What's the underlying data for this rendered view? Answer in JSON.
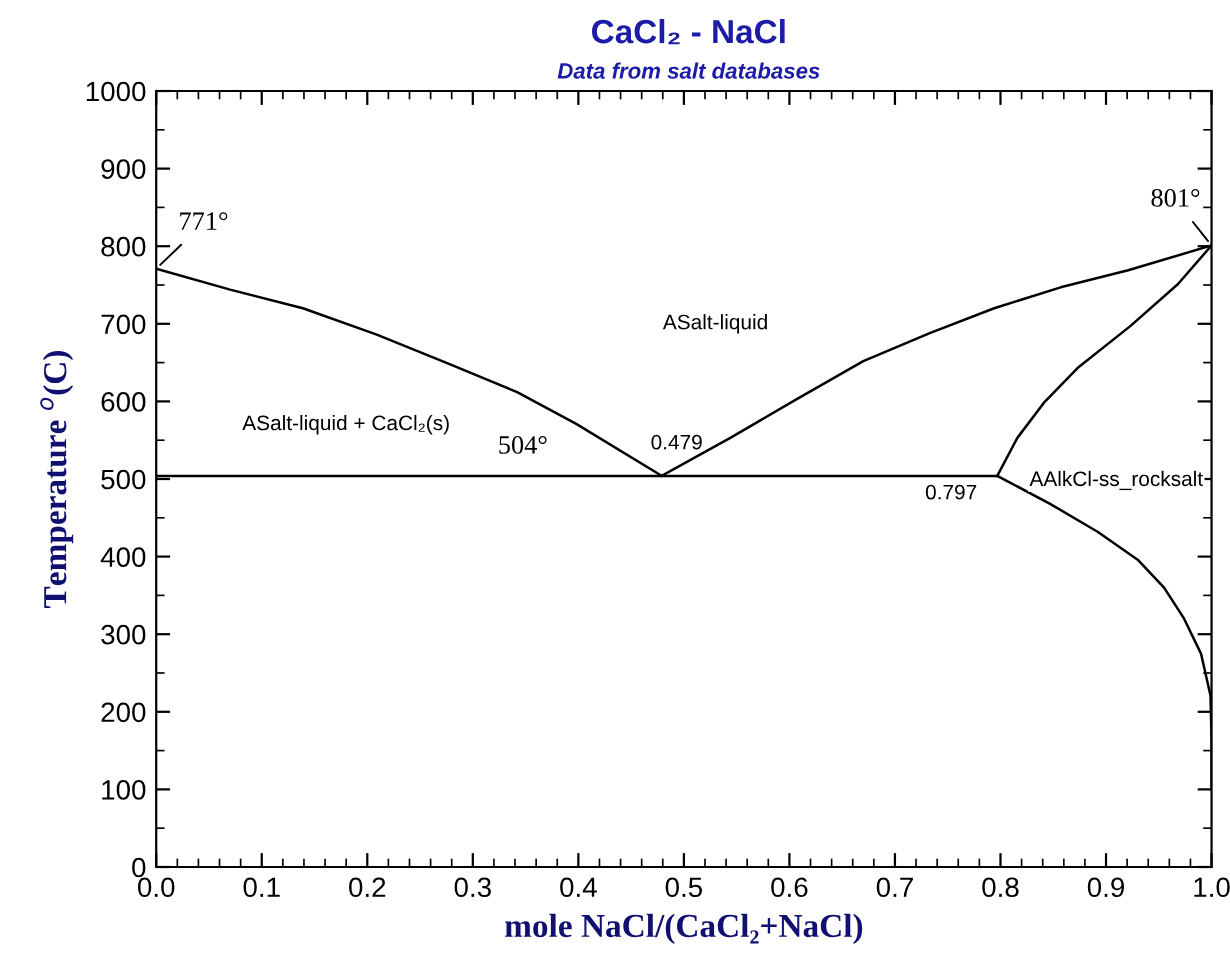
{
  "chart_data": {
    "type": "line",
    "title": "CaCl₂ - NaCl",
    "subtitle": "Data from salt databases",
    "xlabel": "mole NaCl/(CaCl₂+NaCl)",
    "ylabel": "Temperature $^{o}$(C)",
    "series": [
      {
        "color": "#000000",
        "x": [
          0,
          0.07,
          0.139,
          0.209,
          0.278,
          0.342,
          0.398,
          0.479
        ],
        "values": [
          771,
          744,
          720,
          686,
          648,
          612,
          571,
          504
        ]
      },
      {
        "color": "#000000",
        "x": [
          0.479,
          0.544,
          0.607,
          0.67,
          0.733,
          0.794,
          0.857,
          0.921,
          1.0
        ],
        "values": [
          504,
          553,
          603,
          652,
          688,
          720,
          747,
          769,
          801
        ]
      },
      {
        "color": "#000000",
        "x": [
          0,
          0.797
        ],
        "values": [
          504,
          504
        ]
      },
      {
        "color": "#000000",
        "x": [
          0.797,
          0.816,
          0.841,
          0.873,
          0.923,
          0.968,
          1.0
        ],
        "values": [
          504,
          553,
          598,
          643,
          697,
          751,
          801
        ]
      },
      {
        "color": "#000000",
        "x": [
          0.797,
          0.847,
          0.892,
          0.93,
          0.955,
          0.974,
          0.99,
          0.999,
          1.0,
          1.0
        ],
        "values": [
          504,
          468,
          432,
          396,
          360,
          320,
          275,
          221,
          167,
          100
        ]
      }
    ],
    "annotations": [
      {
        "text": "771°",
        "x": 0,
        "y": 771
      },
      {
        "text": "801°",
        "x": 1.0,
        "y": 801
      },
      {
        "text": "504°",
        "x": 0.35,
        "y": 504
      },
      {
        "text": "0.479",
        "x": 0.479,
        "y": 504
      },
      {
        "text": "0.797",
        "x": 0.797,
        "y": 504
      },
      "ASalt-liquid",
      "ASalt-liquid + CaCl₂(s)",
      "AAlkCl-ss_rocksalt"
    ],
    "xlim": [
      0,
      1
    ],
    "ylim": [
      0,
      1000
    ],
    "xticks": [
      {
        "value": 0,
        "label": "0.0"
      },
      {
        "value": 0.1,
        "label": "0.1"
      },
      {
        "value": 0.2,
        "label": "0.2"
      },
      {
        "value": 0.3,
        "label": "0.3"
      },
      {
        "value": 0.4,
        "label": "0.4"
      },
      {
        "value": 0.5,
        "label": "0.5"
      },
      {
        "value": 0.6,
        "label": "0.6"
      },
      {
        "value": 0.7,
        "label": "0.7"
      },
      {
        "value": 0.8,
        "label": "0.8"
      },
      {
        "value": 0.9,
        "label": "0.9"
      },
      {
        "value": 1.0,
        "label": "1.0"
      }
    ],
    "yticks": [
      0,
      100,
      200,
      300,
      400,
      500,
      600,
      700,
      800,
      900,
      1000
    ],
    "grid": false,
    "legend": false,
    "marker": "none",
    "line_style": "solid"
  }
}
